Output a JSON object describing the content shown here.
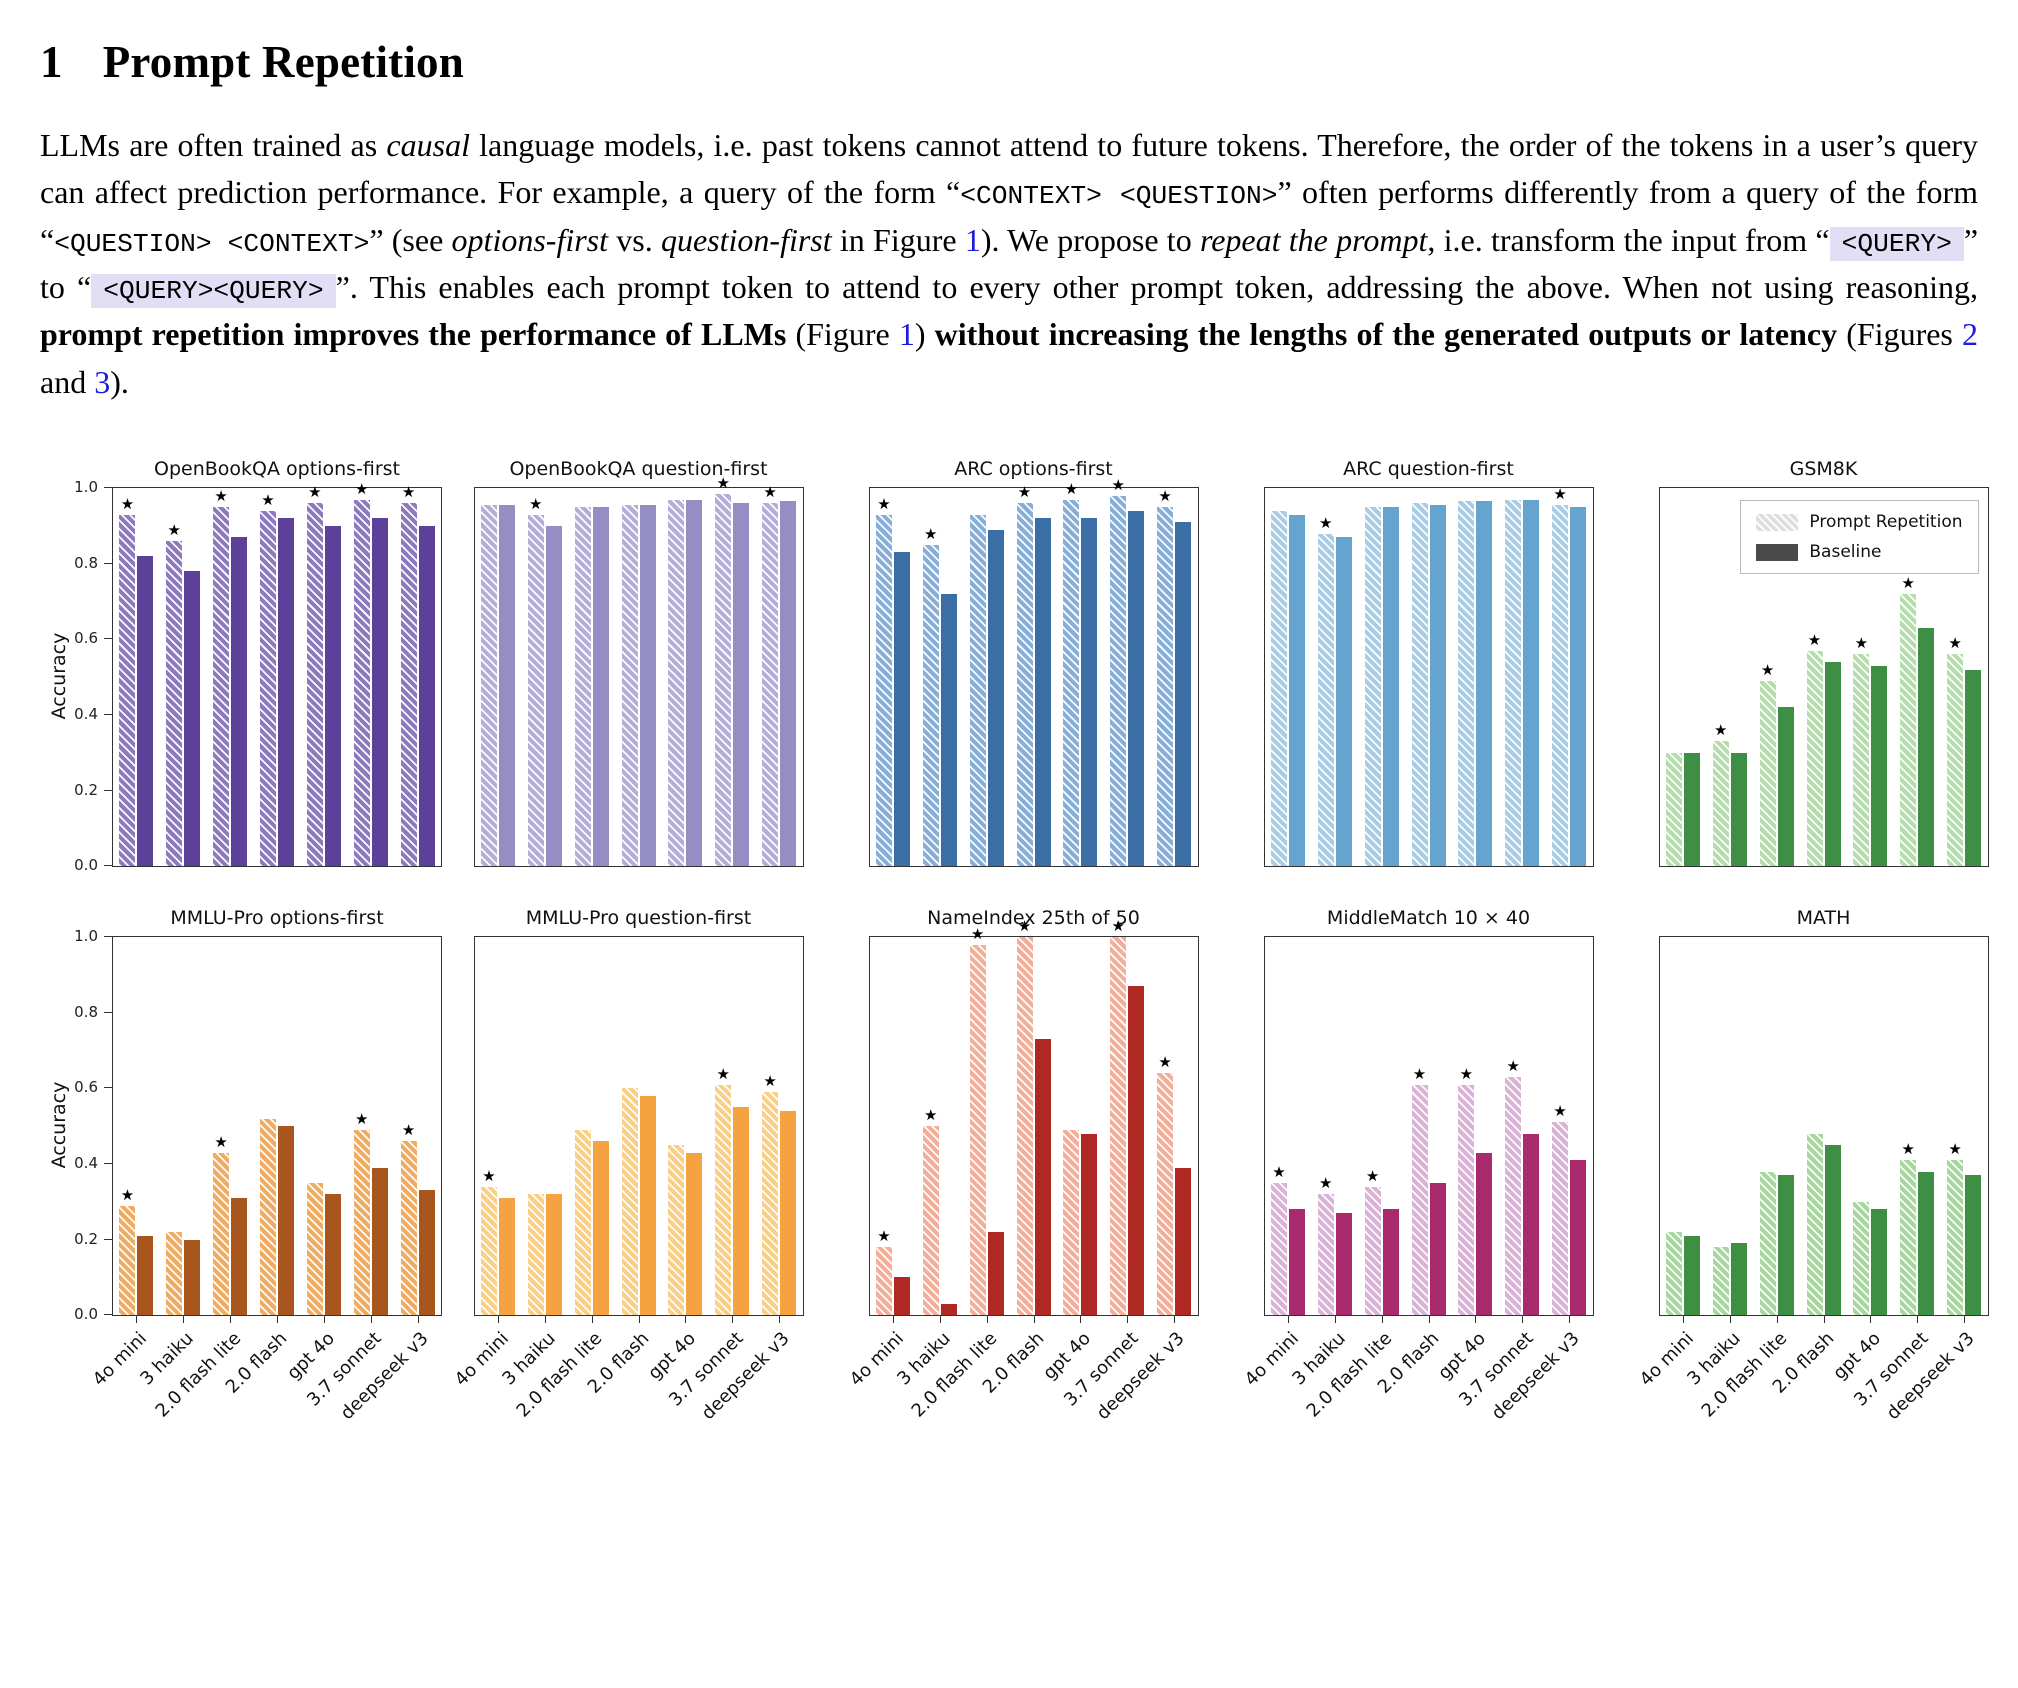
{
  "heading": {
    "number": "1",
    "title": "Prompt Repetition"
  },
  "paragraph": {
    "segments": [
      {
        "style": "plain",
        "text": "LLMs are often trained as "
      },
      {
        "style": "italic",
        "text": "causal"
      },
      {
        "style": "plain",
        "text": " language models, i.e. past tokens cannot attend to future tokens. Therefore, the order of the tokens in a user’s query can affect prediction performance. For example, a query of the form “"
      },
      {
        "style": "code",
        "text": "<CONTEXT> <QUESTION>"
      },
      {
        "style": "plain",
        "text": "” often performs differently from a query of the form “"
      },
      {
        "style": "code",
        "text": "<QUESTION> <CONTEXT>"
      },
      {
        "style": "plain",
        "text": "” (see "
      },
      {
        "style": "italic",
        "text": "options-first"
      },
      {
        "style": "plain",
        "text": " vs. "
      },
      {
        "style": "italic",
        "text": "question-first"
      },
      {
        "style": "plain",
        "text": " in Figure "
      },
      {
        "style": "link",
        "text": "1"
      },
      {
        "style": "plain",
        "text": "). We propose to "
      },
      {
        "style": "italic",
        "text": "repeat the prompt"
      },
      {
        "style": "plain",
        "text": ", i.e. transform the input from “"
      },
      {
        "style": "codehl",
        "text": "<QUERY>"
      },
      {
        "style": "plain",
        "text": "” to “"
      },
      {
        "style": "codehl",
        "text": "<QUERY><QUERY>"
      },
      {
        "style": "plain",
        "text": "”. This enables each prompt token to attend to every other prompt token, addressing the above. When not using reasoning, "
      },
      {
        "style": "bold",
        "text": "prompt repetition improves the performance of LLMs"
      },
      {
        "style": "plain",
        "text": " (Figure "
      },
      {
        "style": "link",
        "text": "1"
      },
      {
        "style": "plain",
        "text": ") "
      },
      {
        "style": "bold",
        "text": "without increasing the lengths of the generated outputs or latency"
      },
      {
        "style": "plain",
        "text": " (Figures "
      },
      {
        "style": "link",
        "text": "2"
      },
      {
        "style": "plain",
        "text": " and "
      },
      {
        "style": "link",
        "text": "3"
      },
      {
        "style": "plain",
        "text": ")."
      }
    ]
  },
  "figure": {
    "ylabel": "Accuracy",
    "yticks": [
      0.0,
      0.2,
      0.4,
      0.6,
      0.8,
      1.0
    ],
    "ytick_labels": [
      "0.0",
      "0.2",
      "0.4",
      "0.6",
      "0.8",
      "1.0"
    ],
    "legend": {
      "pr": "Prompt Repetition",
      "bl": "Baseline"
    },
    "star_symbol": "★"
  },
  "chart_data": [
    {
      "type": "bar",
      "title": "OpenBookQA options-first",
      "ylabel": "Accuracy",
      "ylim": [
        0,
        1
      ],
      "categories": [
        "4o mini",
        "3 haiku",
        "2.0 flash lite",
        "2.0 flash",
        "gpt 4o",
        "3.7 sonnet",
        "deepseek v3"
      ],
      "series": [
        {
          "name": "Prompt Repetition",
          "values": [
            0.93,
            0.86,
            0.95,
            0.94,
            0.96,
            0.97,
            0.96
          ]
        },
        {
          "name": "Baseline",
          "values": [
            0.82,
            0.78,
            0.87,
            0.92,
            0.9,
            0.92,
            0.9
          ]
        }
      ],
      "stars": [
        true,
        true,
        true,
        true,
        true,
        true,
        true
      ],
      "colors": {
        "pr": "#8d7abe",
        "bl": "#5d4099"
      }
    },
    {
      "type": "bar",
      "title": "OpenBookQA question-first",
      "ylim": [
        0,
        1
      ],
      "categories": [
        "4o mini",
        "3 haiku",
        "2.0 flash lite",
        "2.0 flash",
        "gpt 4o",
        "3.7 sonnet",
        "deepseek v3"
      ],
      "series": [
        {
          "name": "Prompt Repetition",
          "values": [
            0.955,
            0.93,
            0.95,
            0.955,
            0.97,
            0.985,
            0.96
          ]
        },
        {
          "name": "Baseline",
          "values": [
            0.955,
            0.9,
            0.95,
            0.955,
            0.97,
            0.96,
            0.965
          ]
        }
      ],
      "stars": [
        false,
        true,
        false,
        false,
        false,
        true,
        true
      ],
      "colors": {
        "pr": "#b3aed8",
        "bl": "#948ec5"
      }
    },
    {
      "type": "bar",
      "title": "ARC options-first",
      "ylim": [
        0,
        1
      ],
      "categories": [
        "4o mini",
        "3 haiku",
        "2.0 flash lite",
        "2.0 flash",
        "gpt 4o",
        "3.7 sonnet",
        "deepseek v3"
      ],
      "series": [
        {
          "name": "Prompt Repetition",
          "values": [
            0.93,
            0.85,
            0.93,
            0.96,
            0.97,
            0.98,
            0.95
          ]
        },
        {
          "name": "Baseline",
          "values": [
            0.83,
            0.72,
            0.89,
            0.92,
            0.92,
            0.94,
            0.91
          ]
        }
      ],
      "stars": [
        true,
        true,
        false,
        true,
        true,
        true,
        true
      ],
      "colors": {
        "pr": "#87aed8",
        "bl": "#3a6ea5"
      }
    },
    {
      "type": "bar",
      "title": "ARC question-first",
      "ylim": [
        0,
        1
      ],
      "categories": [
        "4o mini",
        "3 haiku",
        "2.0 flash lite",
        "2.0 flash",
        "gpt 4o",
        "3.7 sonnet",
        "deepseek v3"
      ],
      "series": [
        {
          "name": "Prompt Repetition",
          "values": [
            0.94,
            0.88,
            0.95,
            0.96,
            0.965,
            0.97,
            0.955
          ]
        },
        {
          "name": "Baseline",
          "values": [
            0.93,
            0.87,
            0.95,
            0.955,
            0.965,
            0.97,
            0.95
          ]
        }
      ],
      "stars": [
        false,
        true,
        false,
        false,
        false,
        false,
        true
      ],
      "colors": {
        "pr": "#a9cce5",
        "bl": "#64a4cf"
      }
    },
    {
      "type": "bar",
      "title": "GSM8K",
      "ylim": [
        0,
        1
      ],
      "legend": [
        "Prompt Repetition",
        "Baseline"
      ],
      "legend_position": "upper right",
      "categories": [
        "4o mini",
        "3 haiku",
        "2.0 flash lite",
        "2.0 flash",
        "gpt 4o",
        "3.7 sonnet",
        "deepseek v3"
      ],
      "series": [
        {
          "name": "Prompt Repetition",
          "values": [
            0.3,
            0.33,
            0.49,
            0.57,
            0.56,
            0.72,
            0.56
          ]
        },
        {
          "name": "Baseline",
          "values": [
            0.3,
            0.3,
            0.42,
            0.54,
            0.53,
            0.63,
            0.52
          ]
        }
      ],
      "stars": [
        false,
        true,
        true,
        true,
        true,
        true,
        true
      ],
      "colors": {
        "pr": "#b5dcad",
        "bl": "#3e8e44"
      }
    },
    {
      "type": "bar",
      "title": "MMLU-Pro options-first",
      "ylabel": "Accuracy",
      "ylim": [
        0,
        1
      ],
      "categories": [
        "4o mini",
        "3 haiku",
        "2.0 flash lite",
        "2.0 flash",
        "gpt 4o",
        "3.7 sonnet",
        "deepseek v3"
      ],
      "series": [
        {
          "name": "Prompt Repetition",
          "values": [
            0.29,
            0.22,
            0.43,
            0.52,
            0.35,
            0.49,
            0.46
          ]
        },
        {
          "name": "Baseline",
          "values": [
            0.21,
            0.2,
            0.31,
            0.5,
            0.32,
            0.39,
            0.33
          ]
        }
      ],
      "stars": [
        true,
        false,
        true,
        false,
        false,
        true,
        true
      ],
      "colors": {
        "pr": "#eeab61",
        "bl": "#a8551e"
      }
    },
    {
      "type": "bar",
      "title": "MMLU-Pro question-first",
      "ylim": [
        0,
        1
      ],
      "categories": [
        "4o mini",
        "3 haiku",
        "2.0 flash lite",
        "2.0 flash",
        "gpt 4o",
        "3.7 sonnet",
        "deepseek v3"
      ],
      "series": [
        {
          "name": "Prompt Repetition",
          "values": [
            0.34,
            0.32,
            0.49,
            0.6,
            0.45,
            0.61,
            0.59
          ]
        },
        {
          "name": "Baseline",
          "values": [
            0.31,
            0.32,
            0.46,
            0.58,
            0.43,
            0.55,
            0.54
          ]
        }
      ],
      "stars": [
        true,
        false,
        false,
        false,
        false,
        true,
        true
      ],
      "colors": {
        "pr": "#f9cf85",
        "bl": "#f5a240"
      }
    },
    {
      "type": "bar",
      "title": "NameIndex 25th of 50",
      "ylim": [
        0,
        1
      ],
      "categories": [
        "4o mini",
        "3 haiku",
        "2.0 flash lite",
        "2.0 flash",
        "gpt 4o",
        "3.7 sonnet",
        "deepseek v3"
      ],
      "series": [
        {
          "name": "Prompt Repetition",
          "values": [
            0.18,
            0.5,
            0.98,
            1.0,
            0.49,
            1.0,
            0.64
          ]
        },
        {
          "name": "Baseline",
          "values": [
            0.1,
            0.03,
            0.22,
            0.73,
            0.48,
            0.87,
            0.39
          ]
        }
      ],
      "stars": [
        true,
        true,
        true,
        true,
        false,
        true,
        true
      ],
      "colors": {
        "pr": "#f3ae99",
        "bl": "#b02823"
      }
    },
    {
      "type": "bar",
      "title": "MiddleMatch 10 × 40",
      "ylim": [
        0,
        1
      ],
      "categories": [
        "4o mini",
        "3 haiku",
        "2.0 flash lite",
        "2.0 flash",
        "gpt 4o",
        "3.7 sonnet",
        "deepseek v3"
      ],
      "series": [
        {
          "name": "Prompt Repetition",
          "values": [
            0.35,
            0.32,
            0.34,
            0.61,
            0.61,
            0.63,
            0.51
          ]
        },
        {
          "name": "Baseline",
          "values": [
            0.28,
            0.27,
            0.28,
            0.35,
            0.43,
            0.48,
            0.41
          ]
        }
      ],
      "stars": [
        true,
        true,
        true,
        true,
        true,
        true,
        true
      ],
      "colors": {
        "pr": "#d9b3d6",
        "bl": "#a92a6c"
      }
    },
    {
      "type": "bar",
      "title": "MATH",
      "ylim": [
        0,
        1
      ],
      "categories": [
        "4o mini",
        "3 haiku",
        "2.0 flash lite",
        "2.0 flash",
        "gpt 4o",
        "3.7 sonnet",
        "deepseek v3"
      ],
      "series": [
        {
          "name": "Prompt Repetition",
          "values": [
            0.22,
            0.18,
            0.38,
            0.48,
            0.3,
            0.41,
            0.41
          ]
        },
        {
          "name": "Baseline",
          "values": [
            0.21,
            0.19,
            0.37,
            0.45,
            0.28,
            0.38,
            0.37
          ]
        }
      ],
      "stars": [
        false,
        false,
        false,
        false,
        false,
        true,
        true
      ],
      "colors": {
        "pr": "#a7d79f",
        "bl": "#3e8e44"
      }
    }
  ]
}
